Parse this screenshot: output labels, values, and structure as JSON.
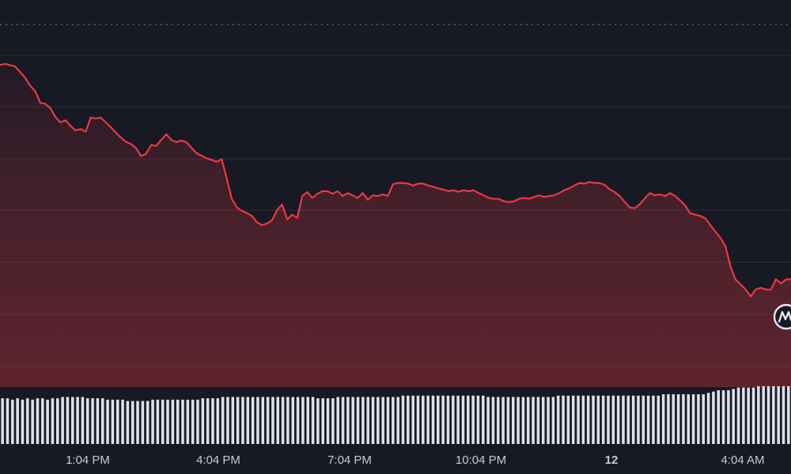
{
  "chart_data": {
    "type": "area",
    "title": "",
    "xlabel": "",
    "ylabel": "",
    "x_tick_labels": [
      "1:04 PM",
      "4:04 PM",
      "7:04 PM",
      "10:04 PM",
      "12",
      "4:04 AM"
    ],
    "bold_ticks": [
      "12"
    ],
    "grid": true,
    "ylim": [
      0,
      100
    ],
    "series": [
      {
        "values": [
          95.4,
          95.8,
          95.4,
          95.0,
          93.2,
          91.4,
          88.9,
          87.1,
          83.5,
          83.2,
          81.8,
          79.0,
          77.3,
          78.0,
          76.2,
          74.8,
          75.2,
          74.4,
          78.8,
          78.6,
          78.8,
          77.3,
          75.8,
          74.1,
          72.5,
          71.2,
          70.5,
          69.2,
          66.7,
          67.4,
          70.2,
          69.9,
          71.8,
          73.6,
          71.8,
          71.1,
          71.6,
          71.1,
          69.3,
          67.6,
          66.8,
          66.0,
          65.5,
          64.9,
          65.7,
          59.6,
          53.2,
          50.5,
          49.4,
          48.7,
          47.8,
          45.8,
          44.9,
          45.4,
          46.4,
          49.7,
          51.4,
          46.7,
          48.2,
          47.2,
          54.1,
          55.3,
          53.5,
          54.8,
          55.6,
          55.6,
          54.8,
          55.6,
          54.1,
          55.0,
          54.3,
          53.5,
          55.0,
          52.9,
          54.3,
          54.1,
          54.6,
          54.1,
          57.8,
          58.2,
          58.2,
          58.0,
          57.4,
          58.0,
          58.0,
          57.4,
          57.0,
          56.5,
          56.1,
          55.6,
          55.9,
          55.4,
          55.9,
          55.6,
          55.9,
          55.0,
          54.3,
          53.5,
          53.2,
          53.2,
          52.4,
          52.2,
          52.4,
          53.2,
          53.5,
          53.2,
          53.8,
          54.3,
          53.8,
          54.1,
          54.3,
          55.0,
          55.9,
          56.5,
          57.4,
          58.2,
          58.0,
          58.5,
          58.2,
          58.2,
          57.6,
          56.2,
          55.3,
          54.1,
          52.2,
          50.5,
          50.2,
          51.5,
          53.4,
          55.0,
          54.3,
          54.6,
          54.1,
          55.0,
          54.1,
          52.7,
          51.1,
          48.6,
          48.2,
          47.8,
          47.0,
          44.9,
          42.8,
          40.9,
          38.2,
          31.7,
          27.7,
          26.2,
          24.6,
          22.4,
          24.6,
          25.1,
          24.6,
          24.5,
          27.8,
          26.5,
          27.7,
          27.9
        ]
      }
    ],
    "volume": [
      34,
      34,
      33,
      34,
      33,
      34,
      33,
      34,
      34,
      33,
      34,
      34,
      35,
      35,
      35,
      35,
      35,
      34,
      34,
      34,
      34,
      33,
      33,
      33,
      33,
      32,
      32,
      32,
      32,
      32,
      33,
      33,
      33,
      33,
      33,
      33,
      33,
      33,
      33,
      33,
      34,
      34,
      34,
      34,
      35,
      35,
      35,
      35,
      35,
      35,
      35,
      35,
      35,
      35,
      35,
      35,
      35,
      35,
      35,
      35,
      35,
      35,
      35,
      34,
      34,
      34,
      34,
      35,
      35,
      35,
      35,
      35,
      35,
      35,
      35,
      35,
      35,
      35,
      35,
      35,
      36,
      36,
      36,
      36,
      36,
      36,
      36,
      36,
      36,
      36,
      36,
      36,
      36,
      36,
      36,
      36,
      36,
      35,
      35,
      35,
      35,
      35,
      35,
      35,
      35,
      35,
      35,
      35,
      35,
      35,
      35,
      36,
      36,
      36,
      36,
      36,
      36,
      36,
      36,
      36,
      36,
      36,
      36,
      36,
      36,
      36,
      36,
      36,
      36,
      36,
      36,
      36,
      37,
      37,
      37,
      37,
      37,
      37,
      37,
      37,
      37,
      38,
      39,
      40,
      40,
      40,
      41,
      42,
      42,
      42,
      42,
      43,
      43,
      43,
      43,
      43,
      43,
      43
    ]
  },
  "colors": {
    "background": "#171924",
    "line": "#ea3943",
    "grid": "#2c2f3c",
    "volume": "#dfe1ea",
    "axis_text": "#c8cbd6",
    "watermark": "#e6e8ee"
  },
  "watermark_icon": "coinmarketcap-logo-icon"
}
